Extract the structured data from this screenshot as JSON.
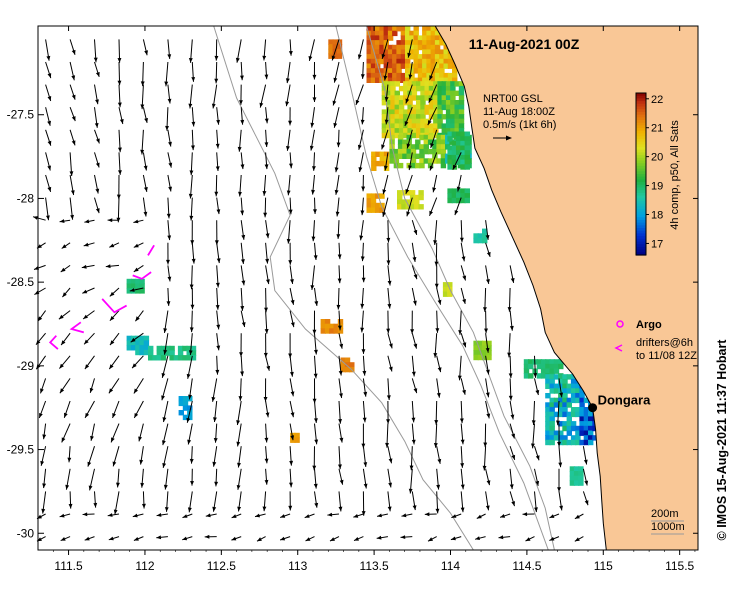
{
  "title": "11-Aug-2021 00Z",
  "map_extent": {
    "lon": [
      111.3,
      115.62
    ],
    "lat": [
      -30.1,
      -26.97
    ]
  },
  "axes": {
    "lon_ticks": [
      {
        "value": 111.5,
        "label": "111.5"
      },
      {
        "value": 112,
        "label": "112"
      },
      {
        "value": 112.5,
        "label": "112.5"
      },
      {
        "value": 113,
        "label": "113"
      },
      {
        "value": 113.5,
        "label": "113.5"
      },
      {
        "value": 114,
        "label": "114"
      },
      {
        "value": 114.5,
        "label": "114.5"
      },
      {
        "value": 115,
        "label": "115"
      },
      {
        "value": 115.5,
        "label": "115.5"
      }
    ],
    "lat_ticks": [
      {
        "value": -27.5,
        "label": "-27.5"
      },
      {
        "value": -28,
        "label": "-28"
      },
      {
        "value": -28.5,
        "label": "-28.5"
      },
      {
        "value": -29,
        "label": "-29"
      },
      {
        "value": -29.5,
        "label": "-29.5"
      },
      {
        "value": -30,
        "label": "-30"
      }
    ]
  },
  "current_info": {
    "source": "NRT00 GSL",
    "time": "11-Aug 18:00Z",
    "scale": "0.5m/s (1kt 6h)"
  },
  "colorbar": {
    "min": 16.6,
    "max": 22.2,
    "ticks": [
      {
        "value": 17,
        "label": "17"
      },
      {
        "value": 18,
        "label": "18"
      },
      {
        "value": 19,
        "label": "19"
      },
      {
        "value": 20,
        "label": "20"
      },
      {
        "value": 21,
        "label": "21"
      },
      {
        "value": 22,
        "label": "22"
      }
    ],
    "label": "4h comp, p50, All Sats"
  },
  "legend": {
    "argo": "Argo",
    "drifters_line1": "drifters@6h",
    "drifters_line2": "to 11/08 12Z",
    "isobath_200": "200m",
    "isobath_1000": "1000m"
  },
  "place": {
    "name": "Dongara",
    "lon": 114.93,
    "lat": -29.25
  },
  "credit": "© IMOS 15-Aug-2021 11:37 Hobart",
  "colors": {
    "land": "#f9c796",
    "coast": "#000000",
    "isobath": "#999999",
    "drifter": "#ff00ff",
    "argo": "#ff00ff"
  }
}
